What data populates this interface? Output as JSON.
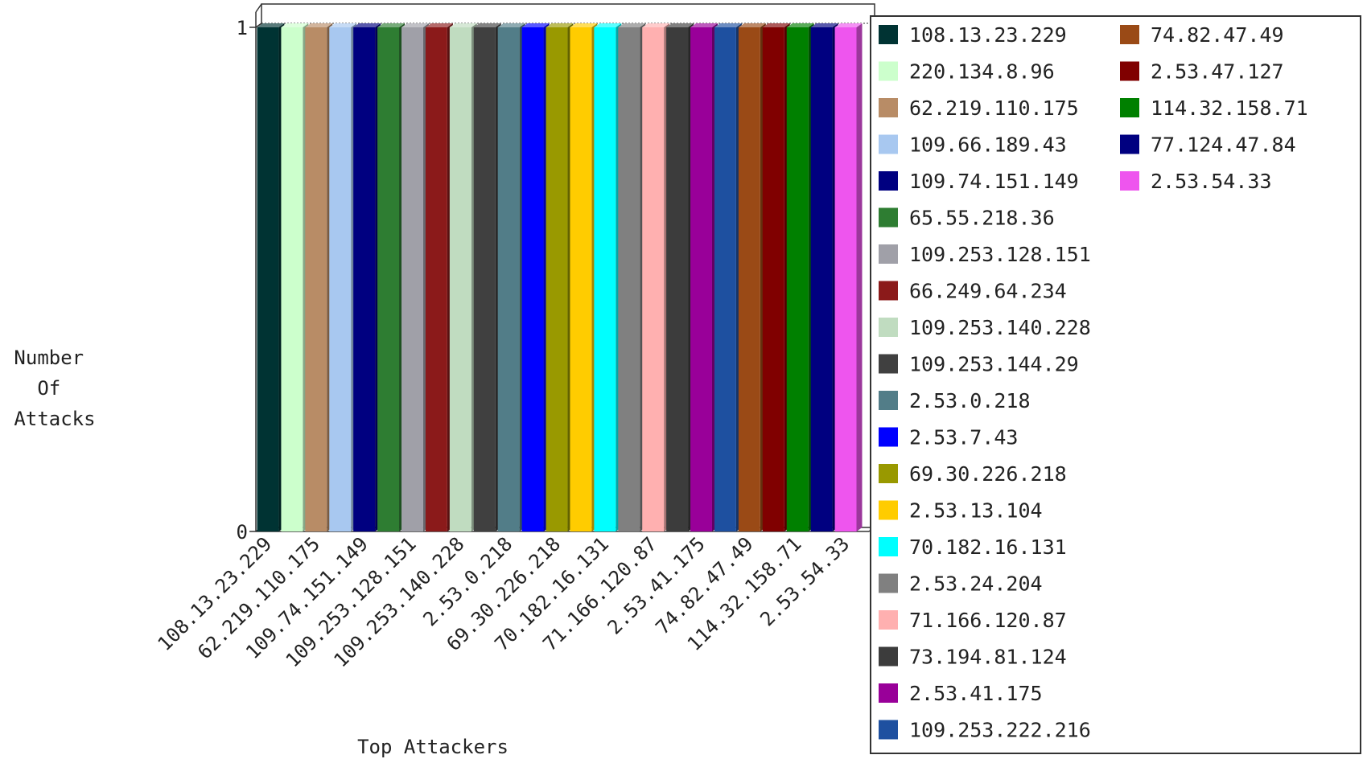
{
  "chart_data": {
    "type": "bar",
    "style": "3d",
    "ylabel_lines": [
      "Number",
      "Of",
      "Attacks"
    ],
    "xlabel": "Top Attackers",
    "ylim": [
      0,
      1
    ],
    "yticks": [
      "0",
      "1"
    ],
    "grid": false,
    "legend_position": "right",
    "categories": [
      "108.13.23.229",
      "220.134.8.96",
      "62.219.110.175",
      "109.66.189.43",
      "109.74.151.149",
      "65.55.218.36",
      "109.253.128.151",
      "66.249.64.234",
      "109.253.140.228",
      "109.253.144.29",
      "2.53.0.218",
      "2.53.7.43",
      "69.30.226.218",
      "2.53.13.104",
      "70.182.16.131",
      "2.53.24.204",
      "71.166.120.87",
      "73.194.81.124",
      "2.53.41.175",
      "109.253.222.216",
      "74.82.47.49",
      "2.53.47.127",
      "114.32.158.71",
      "77.124.47.84",
      "2.53.54.33"
    ],
    "values": [
      1,
      1,
      1,
      1,
      1,
      1,
      1,
      1,
      1,
      1,
      1,
      1,
      1,
      1,
      1,
      1,
      1,
      1,
      1,
      1,
      1,
      1,
      1,
      1,
      1
    ],
    "colors": [
      "#003333",
      "#ccffcc",
      "#b88c66",
      "#a8c8f0",
      "#000080",
      "#2e7d32",
      "#a0a0a8",
      "#8b1a1a",
      "#c0dcc0",
      "#404040",
      "#527d88",
      "#0000ff",
      "#999900",
      "#ffcc00",
      "#00ffff",
      "#808080",
      "#ffb0b0",
      "#3c3c3c",
      "#990099",
      "#1e50a0",
      "#9a4a16",
      "#800000",
      "#008000",
      "#000080",
      "#ee55ee"
    ],
    "xtick_labels": [
      "108.13.23.229",
      "62.219.110.175",
      "109.74.151.149",
      "109.253.128.151",
      "109.253.140.228",
      "2.53.0.218",
      "69.30.226.218",
      "70.182.16.131",
      "71.166.120.87",
      "2.53.41.175",
      "74.82.47.49",
      "114.32.158.71",
      "2.53.54.33"
    ]
  }
}
